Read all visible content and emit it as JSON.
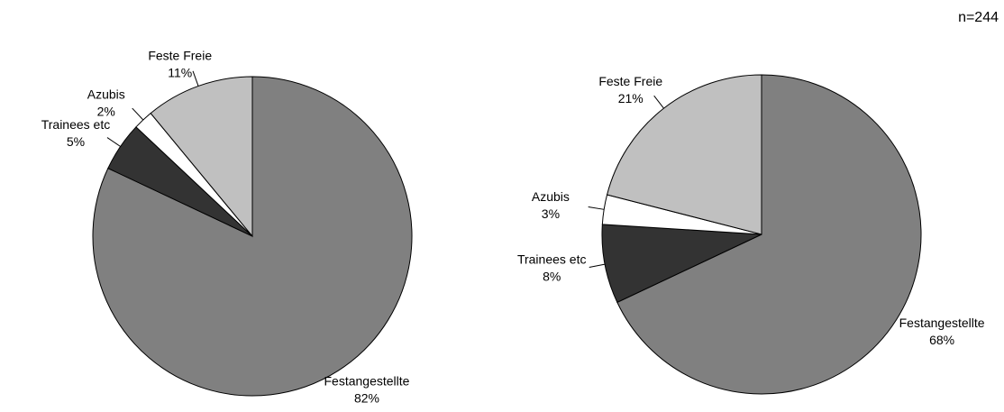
{
  "chart_data": [
    {
      "type": "pie",
      "categories": [
        "Festangestellte",
        "Trainees etc",
        "Azubis",
        "Feste Freie"
      ],
      "values": [
        82,
        5,
        2,
        11
      ],
      "value_labels": [
        "82%",
        "5%",
        "2%",
        "11%"
      ],
      "colors": [
        "#808080",
        "#333333",
        "#ffffff",
        "#c0c0c0"
      ]
    },
    {
      "type": "pie",
      "annotation": "n=244",
      "categories": [
        "Festangestellte",
        "Trainees etc",
        "Azubis",
        "Feste Freie"
      ],
      "values": [
        68,
        8,
        3,
        21
      ],
      "value_labels": [
        "68%",
        "8%",
        "3%",
        "21%"
      ],
      "colors": [
        "#808080",
        "#333333",
        "#ffffff",
        "#c0c0c0"
      ]
    }
  ]
}
